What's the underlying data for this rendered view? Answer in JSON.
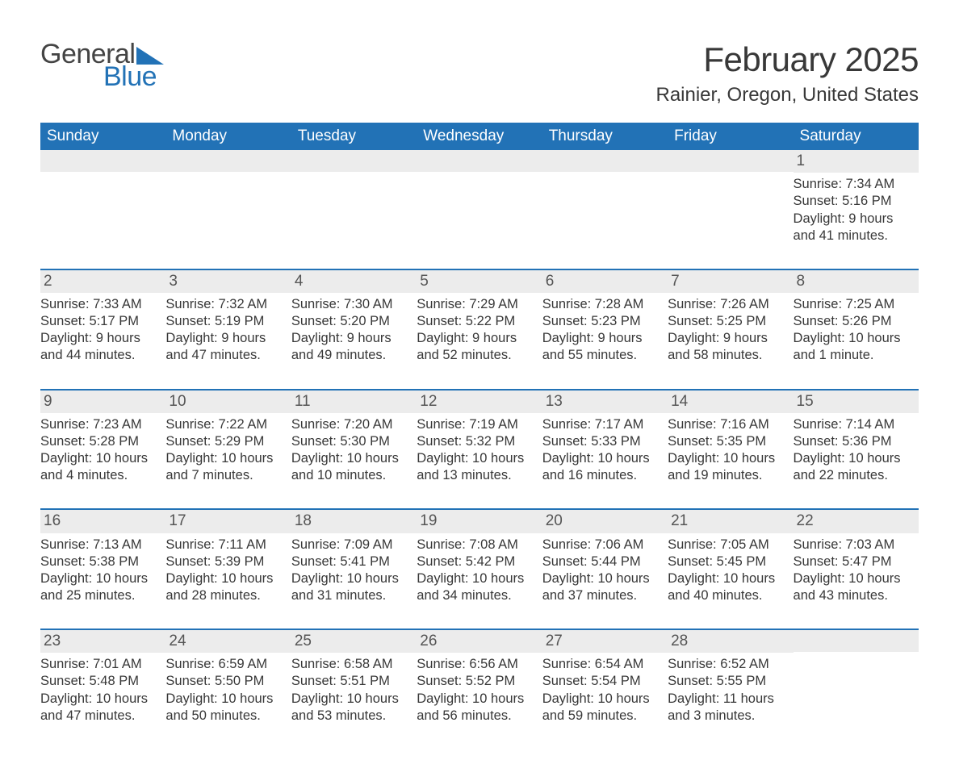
{
  "logo": {
    "text1": "General",
    "text2": "Blue",
    "shape_color": "#2272b6"
  },
  "title": "February 2025",
  "location": "Rainier, Oregon, United States",
  "header_bg": "#2272b6",
  "header_text_color": "#ffffff",
  "daynum_bg": "#ececec",
  "border_color": "#2272b6",
  "text_color": "#383838",
  "background_color": "#ffffff",
  "weekdays": [
    "Sunday",
    "Monday",
    "Tuesday",
    "Wednesday",
    "Thursday",
    "Friday",
    "Saturday"
  ],
  "weeks": [
    [
      null,
      null,
      null,
      null,
      null,
      null,
      {
        "n": "1",
        "sr": "Sunrise: 7:34 AM",
        "ss": "Sunset: 5:16 PM",
        "dl": "Daylight: 9 hours and 41 minutes."
      }
    ],
    [
      {
        "n": "2",
        "sr": "Sunrise: 7:33 AM",
        "ss": "Sunset: 5:17 PM",
        "dl": "Daylight: 9 hours and 44 minutes."
      },
      {
        "n": "3",
        "sr": "Sunrise: 7:32 AM",
        "ss": "Sunset: 5:19 PM",
        "dl": "Daylight: 9 hours and 47 minutes."
      },
      {
        "n": "4",
        "sr": "Sunrise: 7:30 AM",
        "ss": "Sunset: 5:20 PM",
        "dl": "Daylight: 9 hours and 49 minutes."
      },
      {
        "n": "5",
        "sr": "Sunrise: 7:29 AM",
        "ss": "Sunset: 5:22 PM",
        "dl": "Daylight: 9 hours and 52 minutes."
      },
      {
        "n": "6",
        "sr": "Sunrise: 7:28 AM",
        "ss": "Sunset: 5:23 PM",
        "dl": "Daylight: 9 hours and 55 minutes."
      },
      {
        "n": "7",
        "sr": "Sunrise: 7:26 AM",
        "ss": "Sunset: 5:25 PM",
        "dl": "Daylight: 9 hours and 58 minutes."
      },
      {
        "n": "8",
        "sr": "Sunrise: 7:25 AM",
        "ss": "Sunset: 5:26 PM",
        "dl": "Daylight: 10 hours and 1 minute."
      }
    ],
    [
      {
        "n": "9",
        "sr": "Sunrise: 7:23 AM",
        "ss": "Sunset: 5:28 PM",
        "dl": "Daylight: 10 hours and 4 minutes."
      },
      {
        "n": "10",
        "sr": "Sunrise: 7:22 AM",
        "ss": "Sunset: 5:29 PM",
        "dl": "Daylight: 10 hours and 7 minutes."
      },
      {
        "n": "11",
        "sr": "Sunrise: 7:20 AM",
        "ss": "Sunset: 5:30 PM",
        "dl": "Daylight: 10 hours and 10 minutes."
      },
      {
        "n": "12",
        "sr": "Sunrise: 7:19 AM",
        "ss": "Sunset: 5:32 PM",
        "dl": "Daylight: 10 hours and 13 minutes."
      },
      {
        "n": "13",
        "sr": "Sunrise: 7:17 AM",
        "ss": "Sunset: 5:33 PM",
        "dl": "Daylight: 10 hours and 16 minutes."
      },
      {
        "n": "14",
        "sr": "Sunrise: 7:16 AM",
        "ss": "Sunset: 5:35 PM",
        "dl": "Daylight: 10 hours and 19 minutes."
      },
      {
        "n": "15",
        "sr": "Sunrise: 7:14 AM",
        "ss": "Sunset: 5:36 PM",
        "dl": "Daylight: 10 hours and 22 minutes."
      }
    ],
    [
      {
        "n": "16",
        "sr": "Sunrise: 7:13 AM",
        "ss": "Sunset: 5:38 PM",
        "dl": "Daylight: 10 hours and 25 minutes."
      },
      {
        "n": "17",
        "sr": "Sunrise: 7:11 AM",
        "ss": "Sunset: 5:39 PM",
        "dl": "Daylight: 10 hours and 28 minutes."
      },
      {
        "n": "18",
        "sr": "Sunrise: 7:09 AM",
        "ss": "Sunset: 5:41 PM",
        "dl": "Daylight: 10 hours and 31 minutes."
      },
      {
        "n": "19",
        "sr": "Sunrise: 7:08 AM",
        "ss": "Sunset: 5:42 PM",
        "dl": "Daylight: 10 hours and 34 minutes."
      },
      {
        "n": "20",
        "sr": "Sunrise: 7:06 AM",
        "ss": "Sunset: 5:44 PM",
        "dl": "Daylight: 10 hours and 37 minutes."
      },
      {
        "n": "21",
        "sr": "Sunrise: 7:05 AM",
        "ss": "Sunset: 5:45 PM",
        "dl": "Daylight: 10 hours and 40 minutes."
      },
      {
        "n": "22",
        "sr": "Sunrise: 7:03 AM",
        "ss": "Sunset: 5:47 PM",
        "dl": "Daylight: 10 hours and 43 minutes."
      }
    ],
    [
      {
        "n": "23",
        "sr": "Sunrise: 7:01 AM",
        "ss": "Sunset: 5:48 PM",
        "dl": "Daylight: 10 hours and 47 minutes."
      },
      {
        "n": "24",
        "sr": "Sunrise: 6:59 AM",
        "ss": "Sunset: 5:50 PM",
        "dl": "Daylight: 10 hours and 50 minutes."
      },
      {
        "n": "25",
        "sr": "Sunrise: 6:58 AM",
        "ss": "Sunset: 5:51 PM",
        "dl": "Daylight: 10 hours and 53 minutes."
      },
      {
        "n": "26",
        "sr": "Sunrise: 6:56 AM",
        "ss": "Sunset: 5:52 PM",
        "dl": "Daylight: 10 hours and 56 minutes."
      },
      {
        "n": "27",
        "sr": "Sunrise: 6:54 AM",
        "ss": "Sunset: 5:54 PM",
        "dl": "Daylight: 10 hours and 59 minutes."
      },
      {
        "n": "28",
        "sr": "Sunrise: 6:52 AM",
        "ss": "Sunset: 5:55 PM",
        "dl": "Daylight: 11 hours and 3 minutes."
      },
      null
    ]
  ]
}
